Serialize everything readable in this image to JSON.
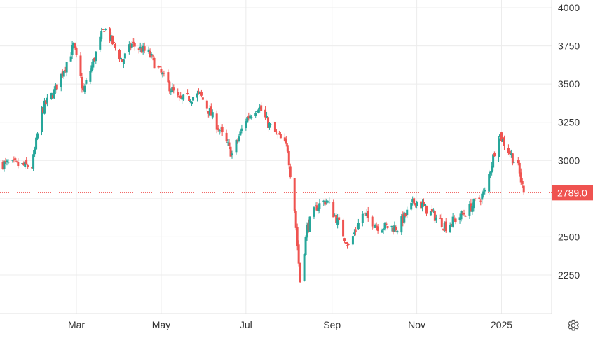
{
  "chart_data": {
    "type": "candlestick",
    "title": "",
    "xlabel": "",
    "ylabel": "",
    "ylim": [
      2000,
      4000
    ],
    "yticks": [
      2250,
      2500,
      2750,
      3000,
      3250,
      3500,
      3750,
      4000
    ],
    "ytick_labels": [
      "2250",
      "2500",
      "",
      "3000",
      "3250",
      "3500",
      "3750",
      "4000"
    ],
    "xticks": [
      {
        "date": "2024-03-01",
        "label": "Mar"
      },
      {
        "date": "2024-05-01",
        "label": "May"
      },
      {
        "date": "2024-07-01",
        "label": "Jul"
      },
      {
        "date": "2024-09-01",
        "label": "Sep"
      },
      {
        "date": "2024-11-01",
        "label": "Nov"
      },
      {
        "date": "2025-01-01",
        "label": "2025"
      }
    ],
    "x_range": [
      "2024-01-08",
      "2025-01-29"
    ],
    "grid": true,
    "last_price": 2789.0,
    "last_price_label": "2789.0",
    "up_color": "#26a69a",
    "down_color": "#ef5350",
    "price_line_color": "#ef5350",
    "key_points": [
      {
        "date": "2024-01-08",
        "close": 2980
      },
      {
        "date": "2024-01-29",
        "close": 2960
      },
      {
        "date": "2024-02-05",
        "close": 3330
      },
      {
        "date": "2024-02-14",
        "close": 3450
      },
      {
        "date": "2024-02-28",
        "close": 3750
      },
      {
        "date": "2024-03-06",
        "close": 3450
      },
      {
        "date": "2024-03-21",
        "close": 3870
      },
      {
        "date": "2024-04-03",
        "close": 3650
      },
      {
        "date": "2024-04-10",
        "close": 3760
      },
      {
        "date": "2024-04-22",
        "close": 3700
      },
      {
        "date": "2024-04-30",
        "close": 3580
      },
      {
        "date": "2024-05-14",
        "close": 3390
      },
      {
        "date": "2024-05-29",
        "close": 3430
      },
      {
        "date": "2024-06-12",
        "close": 3200
      },
      {
        "date": "2024-06-21",
        "close": 3040
      },
      {
        "date": "2024-07-01",
        "close": 3270
      },
      {
        "date": "2024-07-10",
        "close": 3360
      },
      {
        "date": "2024-07-17",
        "close": 3240
      },
      {
        "date": "2024-07-31",
        "close": 3080
      },
      {
        "date": "2024-08-05",
        "close": 2680
      },
      {
        "date": "2024-08-09",
        "close": 2210
      },
      {
        "date": "2024-08-14",
        "close": 2560
      },
      {
        "date": "2024-08-21",
        "close": 2700
      },
      {
        "date": "2024-08-28",
        "close": 2740
      },
      {
        "date": "2024-09-04",
        "close": 2620
      },
      {
        "date": "2024-09-13",
        "close": 2440
      },
      {
        "date": "2024-09-23",
        "close": 2650
      },
      {
        "date": "2024-10-04",
        "close": 2570
      },
      {
        "date": "2024-10-18",
        "close": 2560
      },
      {
        "date": "2024-10-31",
        "close": 2740
      },
      {
        "date": "2024-11-12",
        "close": 2650
      },
      {
        "date": "2024-11-22",
        "close": 2570
      },
      {
        "date": "2024-12-06",
        "close": 2660
      },
      {
        "date": "2024-12-20",
        "close": 2790
      },
      {
        "date": "2024-12-30",
        "close": 3180
      },
      {
        "date": "2025-01-07",
        "close": 3050
      },
      {
        "date": "2025-01-13",
        "close": 2950
      },
      {
        "date": "2025-01-17",
        "close": 2789
      }
    ]
  },
  "ui": {
    "settings_icon": "gear-icon"
  }
}
